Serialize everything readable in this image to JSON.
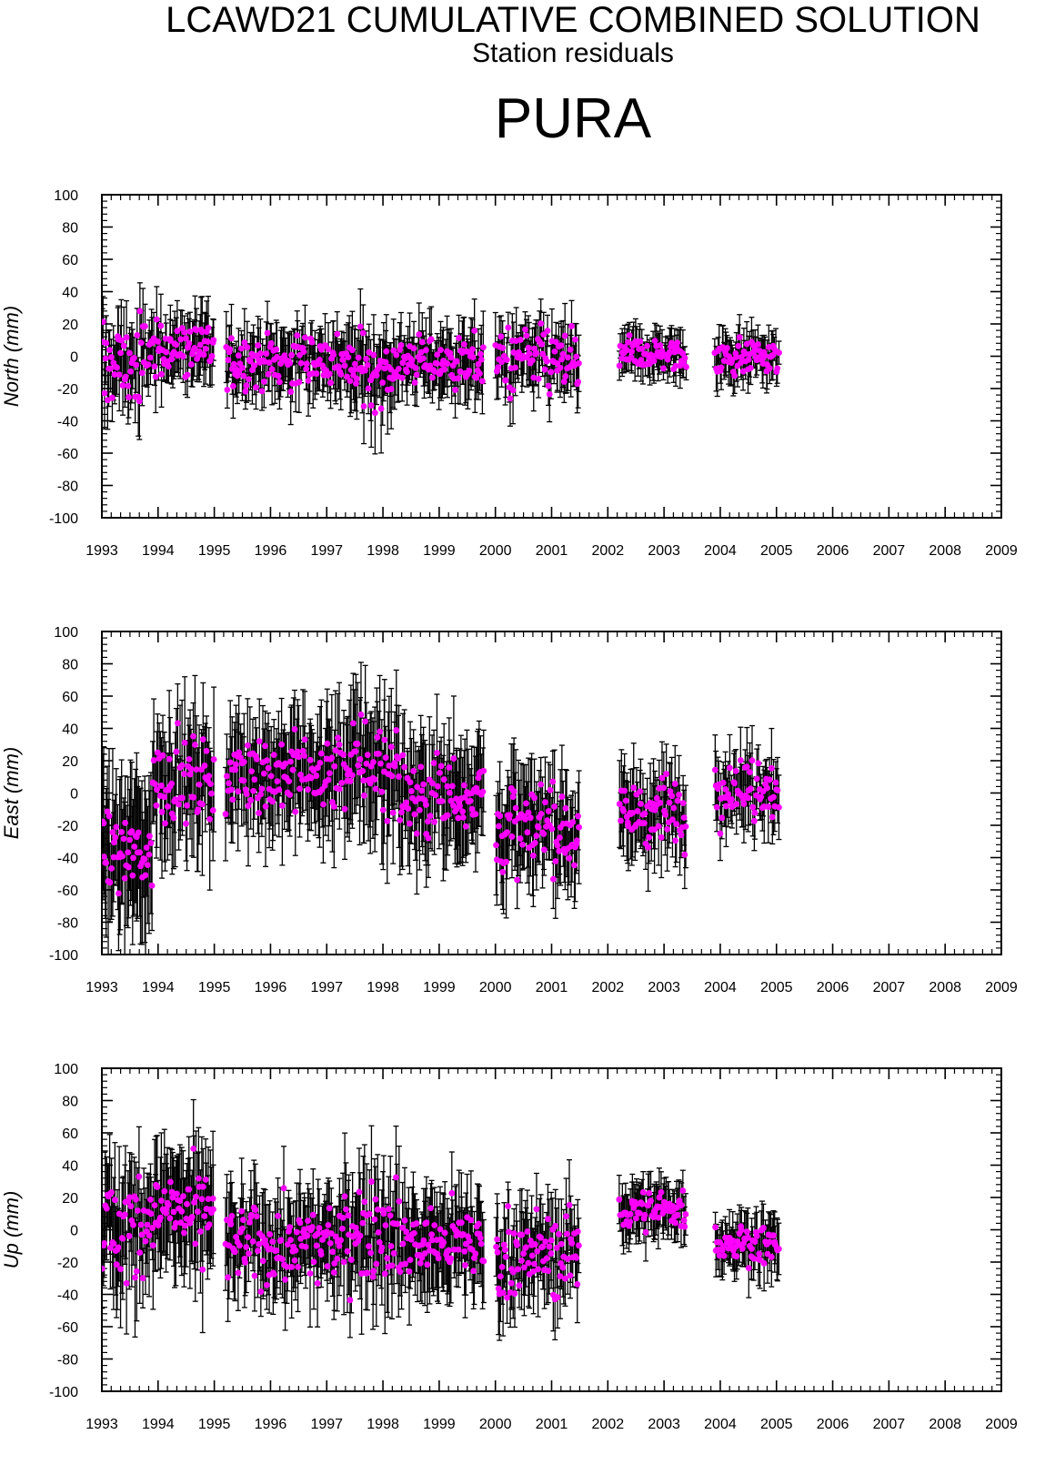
{
  "header": {
    "title": "LCAWD21 CUMULATIVE COMBINED SOLUTION",
    "subtitle": "Station residuals",
    "station": "PURA"
  },
  "colors": {
    "marker": "#ff00ff",
    "errorbar": "#000000",
    "frame": "#000000"
  },
  "chart_data": [
    {
      "type": "scatter",
      "ylabel": "North (mm)",
      "ylim": [
        -100,
        100
      ],
      "xlim": [
        1993,
        2009
      ],
      "yticks": [
        "100",
        "80",
        "60",
        "40",
        "20",
        "0",
        "-20",
        "-40",
        "-60",
        "-80",
        "-100"
      ],
      "xticks": [
        "1993",
        "1994",
        "1995",
        "1996",
        "1997",
        "1998",
        "1999",
        "2000",
        "2001",
        "2002",
        "2003",
        "2004",
        "2005",
        "2006",
        "2007",
        "2008",
        "2009"
      ],
      "series": [
        {
          "error_bars": true,
          "segments": [
            {
              "start": 1993.0,
              "end": 1993.8,
              "mean": -5,
              "spread": 22,
              "err": 18
            },
            {
              "start": 1993.8,
              "end": 1995.0,
              "mean": 5,
              "spread": 16,
              "err": 16
            },
            {
              "start": 1995.2,
              "end": 1997.3,
              "mean": -3,
              "spread": 14,
              "err": 16
            },
            {
              "start": 1997.3,
              "end": 1998.2,
              "mean": -8,
              "spread": 18,
              "err": 20
            },
            {
              "start": 1998.2,
              "end": 1999.8,
              "mean": -3,
              "spread": 13,
              "err": 16
            },
            {
              "start": 2000.0,
              "end": 2001.5,
              "mean": -3,
              "spread": 18,
              "err": 15
            },
            {
              "start": 2002.2,
              "end": 2003.4,
              "mean": 1,
              "spread": 9,
              "err": 11
            },
            {
              "start": 2003.9,
              "end": 2005.05,
              "mean": 0,
              "spread": 9,
              "err": 11
            }
          ]
        }
      ]
    },
    {
      "type": "scatter",
      "ylabel": "East (mm)",
      "ylim": [
        -100,
        100
      ],
      "xlim": [
        1993,
        2009
      ],
      "yticks": [
        "100",
        "80",
        "60",
        "40",
        "20",
        "0",
        "-20",
        "-40",
        "-60",
        "-80",
        "-100"
      ],
      "xticks": [
        "1993",
        "1994",
        "1995",
        "1996",
        "1997",
        "1998",
        "1999",
        "2000",
        "2001",
        "2002",
        "2003",
        "2004",
        "2005",
        "2006",
        "2007",
        "2008",
        "2009"
      ],
      "series": [
        {
          "error_bars": true,
          "segments": [
            {
              "start": 1993.0,
              "end": 1993.9,
              "mean": -38,
              "spread": 18,
              "err": 38
            },
            {
              "start": 1993.9,
              "end": 1995.0,
              "mean": 8,
              "spread": 20,
              "err": 32
            },
            {
              "start": 1995.2,
              "end": 1997.3,
              "mean": 12,
              "spread": 20,
              "err": 28
            },
            {
              "start": 1997.3,
              "end": 1998.3,
              "mean": 18,
              "spread": 24,
              "err": 32
            },
            {
              "start": 1998.3,
              "end": 1999.8,
              "mean": 0,
              "spread": 22,
              "err": 28
            },
            {
              "start": 2000.0,
              "end": 2001.5,
              "mean": -22,
              "spread": 22,
              "err": 26
            },
            {
              "start": 2002.2,
              "end": 2003.4,
              "mean": -12,
              "spread": 18,
              "err": 20
            },
            {
              "start": 2003.9,
              "end": 2005.05,
              "mean": 4,
              "spread": 16,
              "err": 18
            }
          ]
        }
      ]
    },
    {
      "type": "scatter",
      "ylabel": "Up (mm)",
      "ylim": [
        -100,
        100
      ],
      "xlim": [
        1993,
        2009
      ],
      "yticks": [
        "100",
        "80",
        "60",
        "40",
        "20",
        "0",
        "-20",
        "-40",
        "-60",
        "-80",
        "-100"
      ],
      "xticks": [
        "1993",
        "1994",
        "1995",
        "1996",
        "1997",
        "1998",
        "1999",
        "2000",
        "2001",
        "2002",
        "2003",
        "2004",
        "2005",
        "2006",
        "2007",
        "2008",
        "2009"
      ],
      "series": [
        {
          "error_bars": true,
          "segments": [
            {
              "start": 1993.0,
              "end": 1993.8,
              "mean": 0,
              "spread": 28,
              "err": 30
            },
            {
              "start": 1993.8,
              "end": 1995.0,
              "mean": 10,
              "spread": 22,
              "err": 30
            },
            {
              "start": 1995.2,
              "end": 1997.3,
              "mean": -10,
              "spread": 20,
              "err": 24
            },
            {
              "start": 1997.3,
              "end": 1998.3,
              "mean": 2,
              "spread": 24,
              "err": 28
            },
            {
              "start": 1998.3,
              "end": 1999.8,
              "mean": -8,
              "spread": 18,
              "err": 24
            },
            {
              "start": 2000.0,
              "end": 2001.5,
              "mean": -15,
              "spread": 22,
              "err": 22
            },
            {
              "start": 2002.2,
              "end": 2003.4,
              "mean": 12,
              "spread": 10,
              "err": 14
            },
            {
              "start": 2003.9,
              "end": 2005.05,
              "mean": -8,
              "spread": 10,
              "err": 14
            }
          ]
        }
      ]
    }
  ]
}
